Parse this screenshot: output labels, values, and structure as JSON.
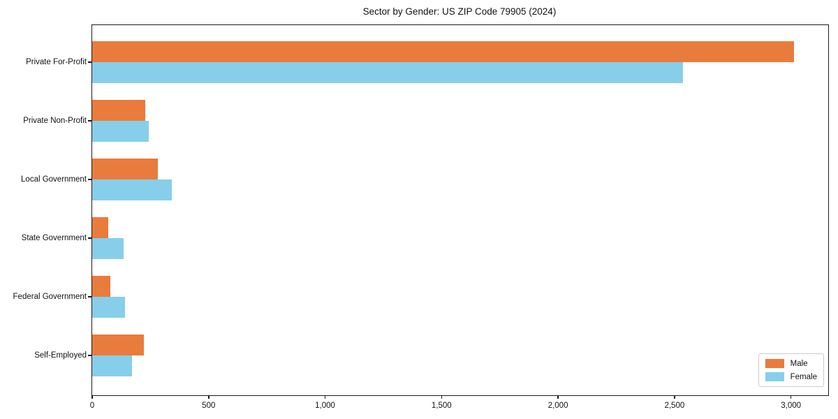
{
  "title": "Sector by Gender: US ZIP Code 79905 (2024)",
  "chart_data": {
    "type": "bar",
    "orientation": "horizontal",
    "title": "Sector by Gender: US ZIP Code 79905 (2024)",
    "xlabel": "",
    "ylabel": "",
    "categories": [
      "Private For-Profit",
      "Private Non-Profit",
      "Local Government",
      "State Government",
      "Federal Government",
      "Self-Employed"
    ],
    "series": [
      {
        "name": "Male",
        "color": "#e97b3d",
        "values": [
          3012,
          228,
          283,
          70,
          78,
          222
        ]
      },
      {
        "name": "Female",
        "color": "#87ceeb",
        "values": [
          2536,
          243,
          342,
          135,
          141,
          171
        ]
      }
    ],
    "xlim": [
      0,
      3160
    ],
    "x_ticks": [
      0,
      500,
      1000,
      1500,
      2000,
      2500,
      3000
    ],
    "x_tick_labels": [
      "0",
      "500",
      "1,000",
      "1,500",
      "2,000",
      "2,500",
      "3,000"
    ],
    "grid": false,
    "legend": {
      "position": "lower-right",
      "entries": [
        "Male",
        "Female"
      ]
    }
  }
}
